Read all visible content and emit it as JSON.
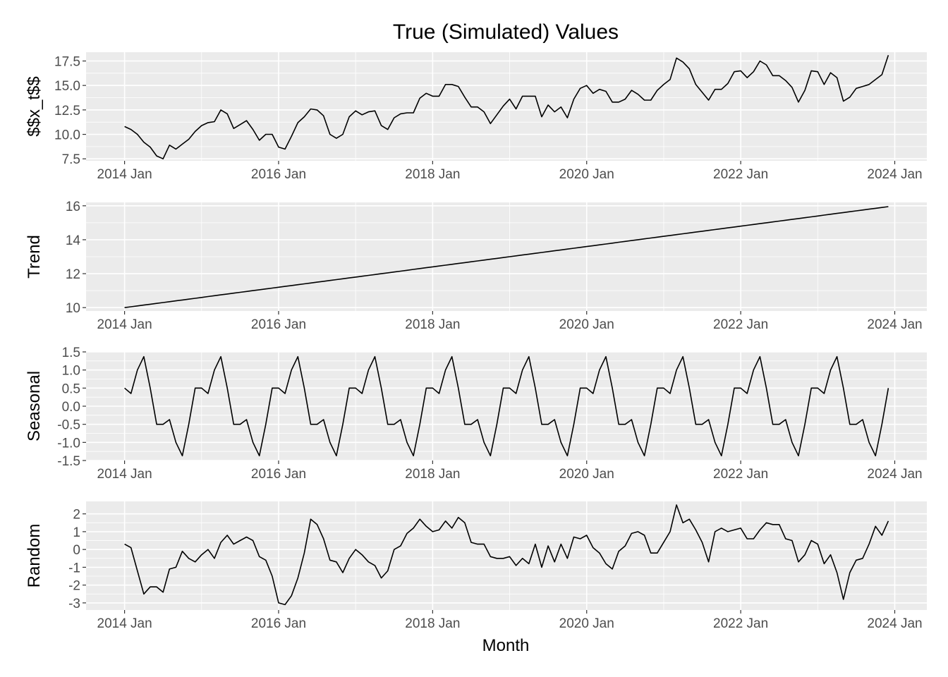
{
  "chart_data": {
    "type": "line",
    "title": "True (Simulated) Values",
    "xlabel": "Month",
    "x_start": "2014 Jan",
    "x_end": "2023 Dec",
    "x_frequency": "monthly",
    "x_ticks": [
      "2014 Jan",
      "2016 Jan",
      "2018 Jan",
      "2020 Jan",
      "2022 Jan",
      "2024 Jan"
    ],
    "grid": true,
    "panels": [
      {
        "ylabel": "$$x_t$$",
        "ylim": [
          7.3,
          18.4
        ],
        "y_ticks": [
          7.5,
          10.0,
          12.5,
          15.0,
          17.5
        ],
        "y_tick_labels": [
          "7.5",
          "10.0",
          "12.5",
          "15.0",
          "17.5"
        ],
        "values": [
          10.8,
          10.5,
          10.0,
          9.2,
          8.7,
          7.8,
          7.5,
          8.9,
          8.5,
          9.0,
          9.5,
          10.3,
          10.9,
          11.2,
          11.3,
          12.5,
          12.1,
          10.6,
          11.0,
          11.4,
          10.5,
          9.4,
          10.0,
          10.0,
          8.7,
          8.5,
          9.8,
          11.2,
          11.8,
          12.6,
          12.5,
          11.9,
          10.0,
          9.6,
          10.0,
          11.8,
          12.4,
          12.0,
          12.3,
          12.4,
          10.9,
          10.5,
          11.7,
          12.1,
          12.2,
          12.2,
          13.7,
          14.2,
          13.9,
          13.9,
          15.1,
          15.1,
          14.9,
          13.8,
          12.8,
          12.8,
          12.3,
          11.1,
          12.0,
          12.9,
          13.6,
          12.6,
          13.9,
          13.9,
          13.9,
          11.8,
          13.0,
          12.3,
          12.8,
          11.7,
          13.6,
          14.7,
          15.0,
          14.2,
          14.6,
          14.4,
          13.3,
          13.3,
          13.6,
          14.5,
          14.1,
          13.5,
          13.5,
          14.5,
          15.1,
          15.6,
          17.8,
          17.4,
          16.7,
          15.1,
          14.3,
          13.5,
          14.6,
          14.6,
          15.2,
          16.4,
          16.5,
          15.8,
          16.4,
          17.5,
          17.1,
          16.0,
          16.0,
          15.5,
          14.8,
          13.3,
          14.5,
          16.5,
          16.4,
          15.1,
          16.3,
          15.8,
          13.4,
          13.8,
          14.7,
          14.9,
          15.1,
          15.6,
          16.1,
          18.1
        ]
      },
      {
        "ylabel": "Trend",
        "ylim": [
          9.8,
          16.2
        ],
        "y_ticks": [
          10,
          12,
          14,
          16
        ],
        "y_tick_labels": [
          "10",
          "12",
          "14",
          "16"
        ],
        "values": [
          10.0,
          10.05,
          10.1,
          10.15,
          10.2,
          10.25,
          10.3,
          10.35,
          10.4,
          10.45,
          10.5,
          10.55,
          10.6,
          10.65,
          10.7,
          10.75,
          10.8,
          10.85,
          10.9,
          10.95,
          11.0,
          11.05,
          11.1,
          11.15,
          11.2,
          11.25,
          11.3,
          11.35,
          11.4,
          11.45,
          11.5,
          11.55,
          11.6,
          11.65,
          11.7,
          11.75,
          11.8,
          11.85,
          11.9,
          11.95,
          12.0,
          12.05,
          12.1,
          12.15,
          12.2,
          12.25,
          12.3,
          12.35,
          12.4,
          12.45,
          12.5,
          12.55,
          12.6,
          12.65,
          12.7,
          12.75,
          12.8,
          12.85,
          12.9,
          12.95,
          13.0,
          13.05,
          13.1,
          13.15,
          13.2,
          13.25,
          13.3,
          13.35,
          13.4,
          13.45,
          13.5,
          13.55,
          13.6,
          13.65,
          13.7,
          13.75,
          13.8,
          13.85,
          13.9,
          13.95,
          14.0,
          14.05,
          14.1,
          14.15,
          14.2,
          14.25,
          14.3,
          14.35,
          14.4,
          14.45,
          14.5,
          14.55,
          14.6,
          14.65,
          14.7,
          14.75,
          14.8,
          14.85,
          14.9,
          14.95,
          15.0,
          15.05,
          15.1,
          15.15,
          15.2,
          15.25,
          15.3,
          15.35,
          15.4,
          15.45,
          15.5,
          15.55,
          15.6,
          15.65,
          15.7,
          15.75,
          15.8,
          15.85,
          15.9,
          15.95
        ]
      },
      {
        "ylabel": "Seasonal",
        "ylim": [
          -1.5,
          1.5
        ],
        "y_ticks": [
          -1.5,
          -1.0,
          -0.5,
          0.0,
          0.5,
          1.0,
          1.5
        ],
        "y_tick_labels": [
          "-1.5",
          "-1.0",
          "-0.5",
          "0.0",
          "0.5",
          "1.0",
          "1.5"
        ],
        "pattern_12": [
          0.5,
          0.35,
          1.0,
          1.37,
          0.5,
          -0.5,
          -0.5,
          -0.37,
          -1.0,
          -1.37,
          -0.5,
          0.5
        ],
        "cycles": 10
      },
      {
        "ylabel": "Random",
        "ylim": [
          -3.4,
          2.7
        ],
        "y_ticks": [
          -3,
          -2,
          -1,
          0,
          1,
          2
        ],
        "y_tick_labels": [
          "-3",
          "-2",
          "-1",
          "0",
          "1",
          "2"
        ],
        "values": [
          0.3,
          0.1,
          -1.2,
          -2.5,
          -2.1,
          -2.1,
          -2.4,
          -1.1,
          -1.0,
          -0.1,
          -0.5,
          -0.7,
          -0.3,
          0.0,
          -0.5,
          0.4,
          0.8,
          0.3,
          0.5,
          0.7,
          0.5,
          -0.4,
          -0.6,
          -1.5,
          -3.0,
          -3.1,
          -2.6,
          -1.6,
          -0.2,
          1.7,
          1.4,
          0.6,
          -0.6,
          -0.7,
          -1.3,
          -0.5,
          0.0,
          -0.3,
          -0.7,
          -0.9,
          -1.6,
          -1.2,
          0.0,
          0.2,
          0.9,
          1.2,
          1.7,
          1.3,
          1.0,
          1.1,
          1.6,
          1.2,
          1.8,
          1.5,
          0.4,
          0.3,
          0.3,
          -0.4,
          -0.5,
          -0.5,
          -0.4,
          -0.9,
          -0.5,
          -0.8,
          0.3,
          -1.0,
          0.2,
          -0.7,
          0.3,
          -0.5,
          0.7,
          0.6,
          0.8,
          0.1,
          -0.2,
          -0.8,
          -1.1,
          -0.1,
          0.2,
          0.9,
          1.0,
          0.8,
          -0.2,
          -0.2,
          0.4,
          1.0,
          2.5,
          1.5,
          1.7,
          1.1,
          0.4,
          -0.7,
          1.0,
          1.2,
          1.0,
          1.1,
          1.2,
          0.6,
          0.6,
          1.1,
          1.5,
          1.4,
          1.4,
          0.6,
          0.5,
          -0.7,
          -0.3,
          0.5,
          0.3,
          -0.8,
          -0.3,
          -1.3,
          -2.8,
          -1.3,
          -0.6,
          -0.5,
          0.3,
          1.3,
          0.8,
          1.6
        ]
      }
    ]
  }
}
